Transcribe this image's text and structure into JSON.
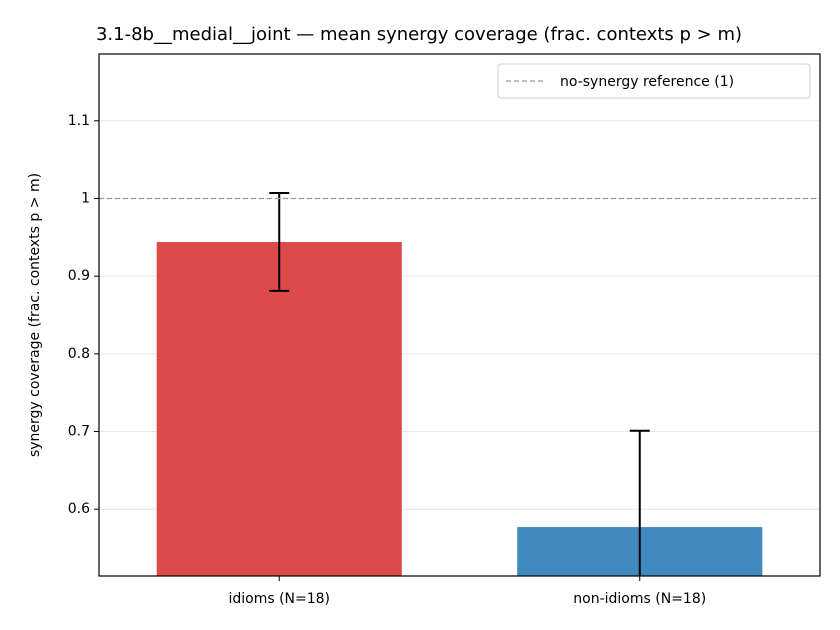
{
  "chart_data": {
    "type": "bar",
    "title": "3.1-8b__medial__joint — mean synergy coverage  (frac. contexts p > m)",
    "ylabel": "synergy coverage  (frac. contexts p > m)",
    "categories": [
      "idioms (N=18)",
      "non-idioms (N=18)"
    ],
    "values": [
      0.944,
      0.577
    ],
    "errors": [
      0.063,
      0.124
    ],
    "colors": [
      "#dc4a4a",
      "#418abf"
    ],
    "ylim": [
      0.514,
      1.186
    ],
    "yticks": [
      0.6,
      0.7,
      0.8,
      0.9,
      1.0,
      1.1
    ],
    "grid": true,
    "reference": {
      "value": 1,
      "label": "no-synergy reference (1)",
      "color": "#999999"
    },
    "legend": "upper right"
  }
}
